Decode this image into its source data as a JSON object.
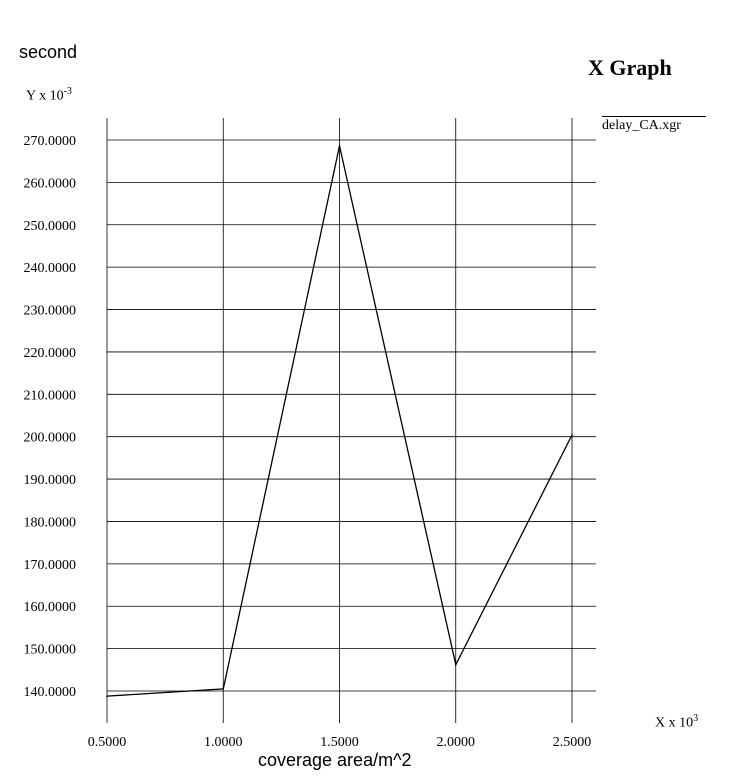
{
  "window": {
    "title": "X Graph"
  },
  "chart_data": {
    "type": "line",
    "title": "X Graph",
    "ylabel": "second",
    "xlabel": "coverage area/m^2",
    "y_scale_label": "Y x 10",
    "y_scale_exp": "-3",
    "x_scale_label": "X x 10",
    "x_scale_exp": "3",
    "xlim": [
      0.5,
      2.5
    ],
    "ylim": [
      135,
      275
    ],
    "x_ticks": [
      0.5,
      1.0,
      1.5,
      2.0,
      2.5
    ],
    "x_tick_labels": [
      "0.5000",
      "1.0000",
      "1.5000",
      "2.0000",
      "2.5000"
    ],
    "y_ticks": [
      140,
      150,
      160,
      170,
      180,
      190,
      200,
      210,
      220,
      230,
      240,
      250,
      260,
      270
    ],
    "y_tick_labels": [
      "140.0000",
      "150.0000",
      "160.0000",
      "170.0000",
      "180.0000",
      "190.0000",
      "200.0000",
      "210.0000",
      "220.0000",
      "230.0000",
      "240.0000",
      "250.0000",
      "260.0000",
      "270.0000"
    ],
    "grid": true,
    "legend_position": "top-right",
    "series": [
      {
        "name": "delay_CA.xgr",
        "color": "#000000",
        "x": [
          0.5,
          1.0,
          1.5,
          2.0,
          2.5
        ],
        "y": [
          138.8,
          140.5,
          268.6,
          146.2,
          200.4
        ]
      }
    ]
  }
}
